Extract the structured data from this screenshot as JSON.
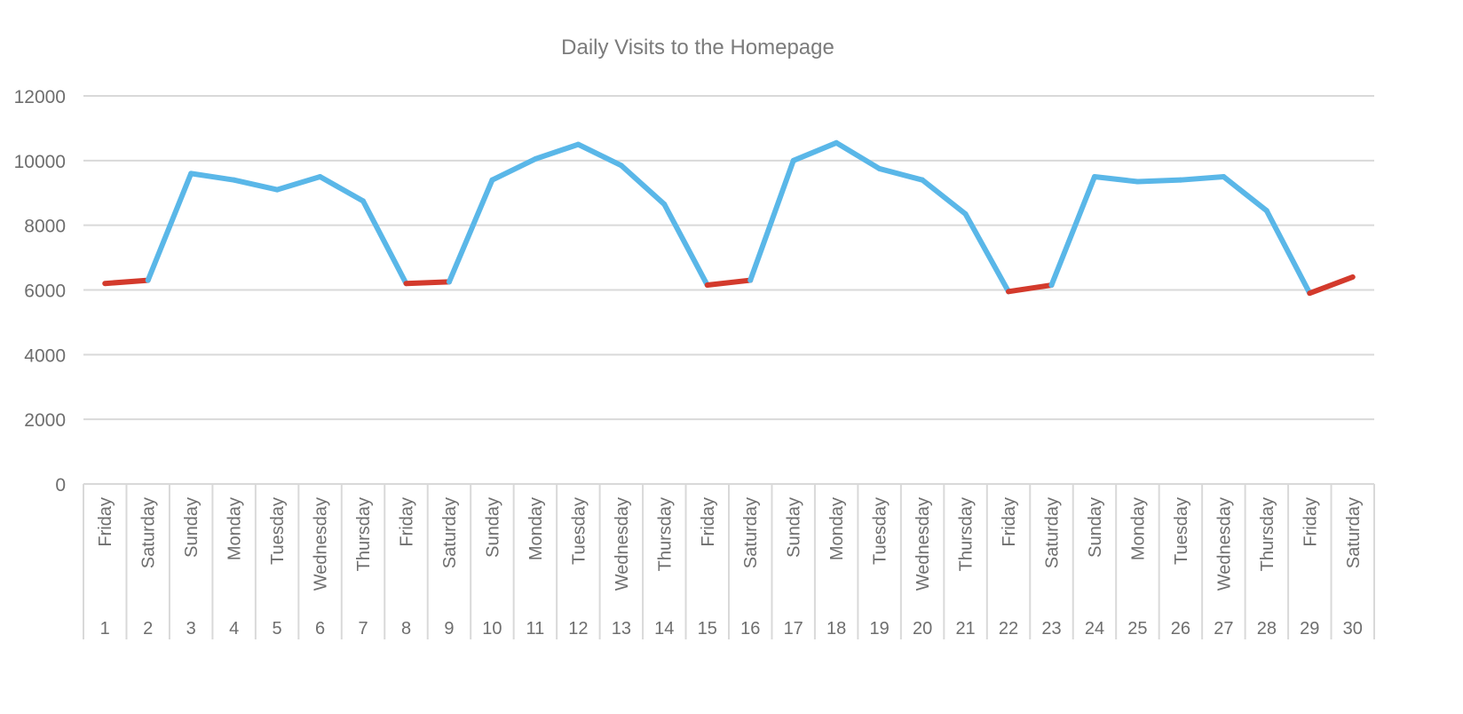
{
  "chart_data": {
    "type": "line",
    "title": "Daily Visits to the Homepage",
    "xlabel": "",
    "ylabel": "",
    "ylim": [
      0,
      12000
    ],
    "yticks": [
      0,
      2000,
      4000,
      6000,
      8000,
      10000,
      12000
    ],
    "grid": true,
    "legend": "none",
    "x": [
      1,
      2,
      3,
      4,
      5,
      6,
      7,
      8,
      9,
      10,
      11,
      12,
      13,
      14,
      15,
      16,
      17,
      18,
      19,
      20,
      21,
      22,
      23,
      24,
      25,
      26,
      27,
      28,
      29,
      30
    ],
    "weekdays": [
      "Friday",
      "Saturday",
      "Sunday",
      "Monday",
      "Tuesday",
      "Wednesday",
      "Thursday",
      "Friday",
      "Saturday",
      "Sunday",
      "Monday",
      "Tuesday",
      "Wednesday",
      "Thursday",
      "Friday",
      "Saturday",
      "Sunday",
      "Monday",
      "Tuesday",
      "Wednesday",
      "Thursday",
      "Friday",
      "Saturday",
      "Sunday",
      "Monday",
      "Tuesday",
      "Wednesday",
      "Thursday",
      "Friday",
      "Saturday"
    ],
    "values": [
      6200,
      6300,
      9600,
      9400,
      9100,
      9500,
      8750,
      6200,
      6250,
      9400,
      10050,
      10500,
      9850,
      8650,
      6150,
      6300,
      10000,
      10550,
      9750,
      9400,
      8350,
      5950,
      6150,
      9500,
      9350,
      9400,
      9500,
      8450,
      5900,
      6400
    ],
    "colors": {
      "weekday": "#5ab7e8",
      "weekend": "#d33a2c",
      "grid": "#d9d9d9"
    }
  }
}
